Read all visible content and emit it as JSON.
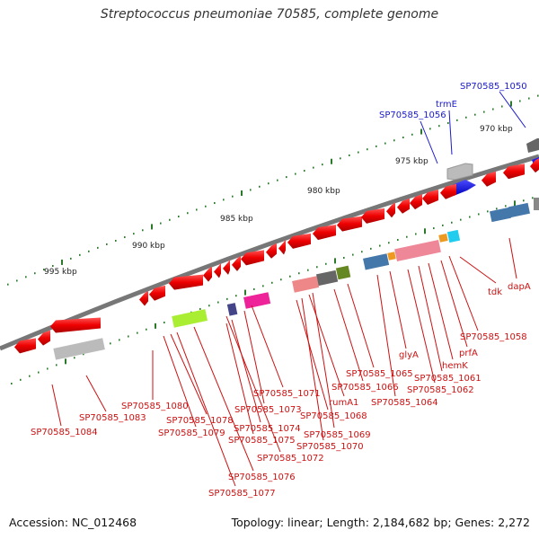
{
  "title": "Streptococcus pneumoniae 70585, complete genome",
  "footer": {
    "accession": "Accession: NC_012468",
    "summary": "Topology: linear; Length: 2,184,682 bp; Genes: 2,272"
  },
  "scale_labels": [
    "970 kbp",
    "975 kbp",
    "980 kbp",
    "985 kbp",
    "990 kbp",
    "995 kbp"
  ],
  "gene_labels_blue": [
    "SP70585_1050",
    "trmE",
    "SP70585_1056"
  ],
  "gene_labels_red": [
    "dapA",
    "tdk",
    "SP70585_1058",
    "prfA",
    "hemK",
    "SP70585_1061",
    "SP70585_1062",
    "glyA",
    "SP70585_1064",
    "SP70585_1065",
    "SP70585_1066",
    "rumA1",
    "SP70585_1068",
    "SP70585_1069",
    "SP70585_1070",
    "SP70585_1071",
    "SP70585_1072",
    "SP70585_1073",
    "SP70585_1074",
    "SP70585_1075",
    "SP70585_1076",
    "SP70585_1077",
    "SP70585_1078",
    "SP70585_1079",
    "SP70585_1080",
    "SP70585_1083",
    "SP70585_1084"
  ],
  "colors": {
    "backbone": "#777777",
    "gene_forward": "#1a1aee",
    "gene_reverse": "#ee1111",
    "label_blue": "#1a1acc",
    "label_red": "#cc1111",
    "tick": "#2a7a2a"
  }
}
